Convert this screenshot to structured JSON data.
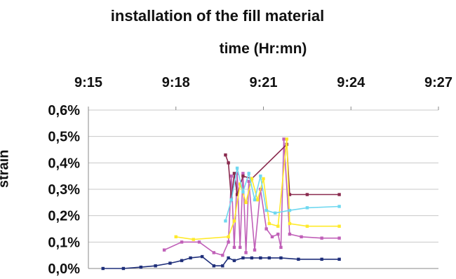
{
  "chart_data": {
    "type": "line",
    "title": "installation of the fill material",
    "xlabel": "time (Hr:mn)",
    "ylabel": "strain",
    "x_ticks": [
      "9:15",
      "9:18",
      "9:21",
      "9:24",
      "9:27"
    ],
    "x_tick_minutes": [
      0,
      3,
      6,
      9,
      12
    ],
    "xlim_minutes": [
      0,
      12
    ],
    "y_ticks": [
      "0,0%",
      "0,1%",
      "0,2%",
      "0,3%",
      "0,4%",
      "0,5%",
      "0,6%"
    ],
    "ylim_percent": [
      0,
      0.6
    ],
    "grid": true,
    "legend": "none",
    "series": [
      {
        "color": "#1f2f7a",
        "points": [
          [
            0.5,
            0.0
          ],
          [
            1.2,
            0.0
          ],
          [
            1.8,
            0.005
          ],
          [
            2.3,
            0.01
          ],
          [
            2.8,
            0.02
          ],
          [
            3.2,
            0.03
          ],
          [
            3.5,
            0.04
          ],
          [
            3.9,
            0.045
          ],
          [
            4.3,
            0.01
          ],
          [
            4.6,
            0.01
          ],
          [
            4.8,
            0.04
          ],
          [
            5.0,
            0.03
          ],
          [
            5.3,
            0.04
          ],
          [
            5.6,
            0.04
          ],
          [
            5.9,
            0.04
          ],
          [
            6.2,
            0.04
          ],
          [
            6.6,
            0.04
          ],
          [
            7.2,
            0.035
          ],
          [
            8.0,
            0.035
          ],
          [
            8.6,
            0.035
          ]
        ]
      },
      {
        "color": "#c060b8",
        "points": [
          [
            2.6,
            0.07
          ],
          [
            3.2,
            0.1
          ],
          [
            3.8,
            0.1
          ],
          [
            4.3,
            0.06
          ],
          [
            4.6,
            0.05
          ],
          [
            4.8,
            0.1
          ],
          [
            4.9,
            0.35
          ],
          [
            5.0,
            0.08
          ],
          [
            5.1,
            0.36
          ],
          [
            5.2,
            0.08
          ],
          [
            5.3,
            0.36
          ],
          [
            5.4,
            0.06
          ],
          [
            5.5,
            0.33
          ],
          [
            5.7,
            0.07
          ],
          [
            5.9,
            0.3
          ],
          [
            6.1,
            0.15
          ],
          [
            6.3,
            0.12
          ],
          [
            6.5,
            0.13
          ],
          [
            6.6,
            0.08
          ],
          [
            6.7,
            0.49
          ],
          [
            6.9,
            0.13
          ],
          [
            7.3,
            0.12
          ],
          [
            8.0,
            0.115
          ],
          [
            8.6,
            0.115
          ]
        ]
      },
      {
        "color": "#8a2a4e",
        "points": [
          [
            4.7,
            0.43
          ],
          [
            4.8,
            0.4
          ],
          [
            4.9,
            0.26
          ],
          [
            5.0,
            0.36
          ],
          [
            5.1,
            0.28
          ],
          [
            5.3,
            0.35
          ],
          [
            5.6,
            0.34
          ],
          [
            6.8,
            0.47
          ],
          [
            6.9,
            0.28
          ],
          [
            7.5,
            0.28
          ],
          [
            8.6,
            0.28
          ]
        ]
      },
      {
        "color": "#ffea2a",
        "points": [
          [
            3.0,
            0.12
          ],
          [
            3.6,
            0.11
          ],
          [
            4.8,
            0.12
          ],
          [
            5.0,
            0.18
          ],
          [
            5.2,
            0.32
          ],
          [
            5.4,
            0.25
          ],
          [
            5.6,
            0.34
          ],
          [
            5.8,
            0.26
          ],
          [
            6.0,
            0.34
          ],
          [
            6.2,
            0.17
          ],
          [
            6.5,
            0.16
          ],
          [
            6.8,
            0.49
          ],
          [
            6.9,
            0.17
          ],
          [
            7.5,
            0.16
          ],
          [
            8.6,
            0.16
          ]
        ]
      },
      {
        "color": "#6fd8f0",
        "points": [
          [
            4.7,
            0.18
          ],
          [
            4.9,
            0.26
          ],
          [
            5.1,
            0.38
          ],
          [
            5.3,
            0.29
          ],
          [
            5.5,
            0.36
          ],
          [
            5.7,
            0.26
          ],
          [
            5.9,
            0.35
          ],
          [
            6.1,
            0.22
          ],
          [
            6.4,
            0.21
          ],
          [
            6.9,
            0.22
          ],
          [
            7.5,
            0.23
          ],
          [
            8.6,
            0.235
          ]
        ]
      }
    ]
  }
}
